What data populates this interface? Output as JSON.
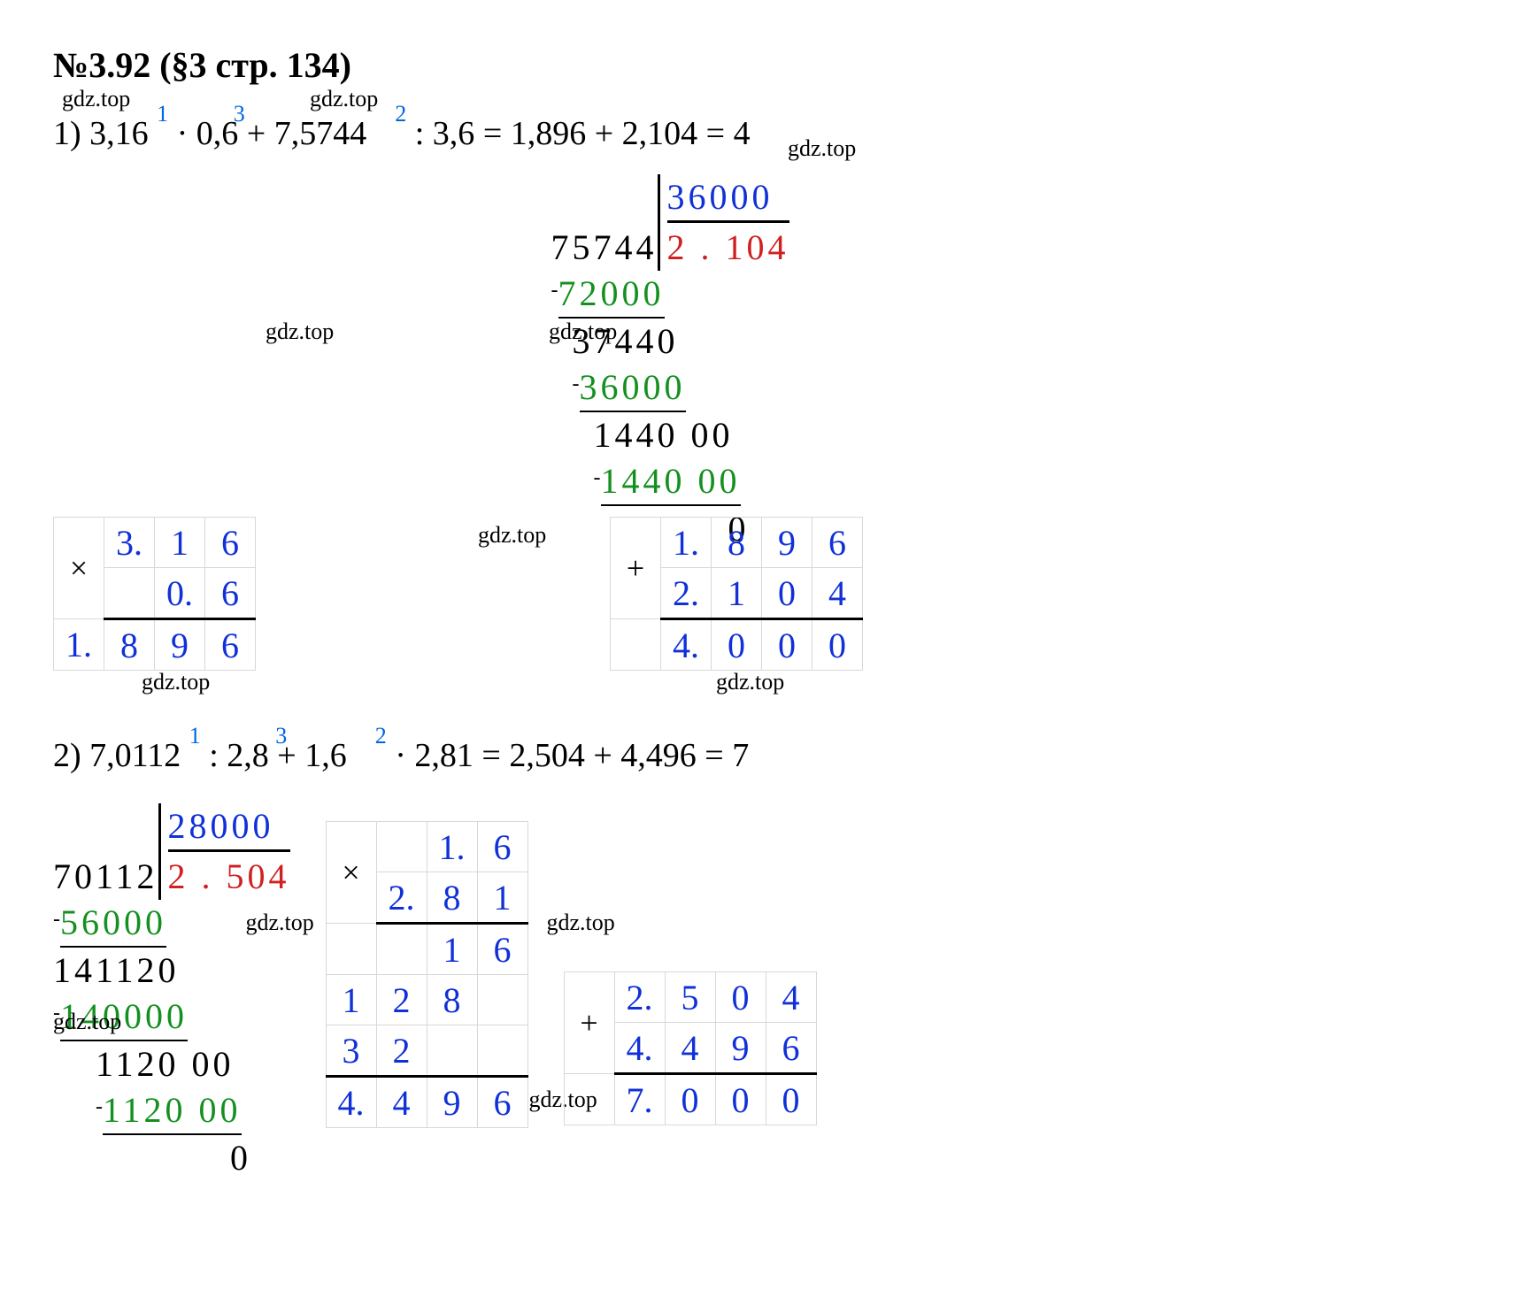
{
  "title": "№3.92 (§3 стр. 134)",
  "wm": "gdz.top",
  "eq1": {
    "prefix": "1) 3,16",
    "s1": "1",
    "m1": "· 0,6 + 7,5744",
    "s2": "3",
    "m2": ": 3,6",
    "s3": "2",
    "rest": "= 1,896 + 2,104 = 4"
  },
  "eq2": {
    "prefix": "2) 7,0112",
    "s1": "1",
    "m1": ": 2,8 + 1,6",
    "s2": "3",
    "m2": "· 2,81",
    "s3": "2",
    "rest": "= 2,504 + 4,496 = 7"
  },
  "mult1": {
    "op": "×",
    "r1": [
      "",
      "3.",
      "1",
      "6"
    ],
    "r2": [
      "",
      "",
      "0.",
      "6"
    ],
    "r3": [
      "1.",
      "8",
      "9",
      "6"
    ]
  },
  "div1": {
    "dividend": "75744",
    "divisor": "36000",
    "quotient": "2 . 104",
    "steps": [
      {
        "minus": "-",
        "v": "72000",
        "cls": "green ul",
        "ind": ""
      },
      {
        "minus": "",
        "v": "37440",
        "cls": "",
        "ind": "ind1"
      },
      {
        "minus": "-",
        "v": "36000",
        "cls": "green ul",
        "ind": "ind1"
      },
      {
        "minus": "",
        "v": "1440 00",
        "cls": "",
        "ind": "ind2"
      },
      {
        "minus": "-",
        "v": "1440 00",
        "cls": "green ul",
        "ind": "ind2"
      },
      {
        "minus": "",
        "v": "0",
        "cls": "",
        "ind": "ind5"
      }
    ]
  },
  "add1": {
    "op": "+",
    "r1": [
      "",
      "1.",
      "8",
      "9",
      "6"
    ],
    "r2": [
      "",
      "2.",
      "1",
      "0",
      "4"
    ],
    "r3": [
      "",
      "4.",
      "0",
      "0",
      "0"
    ]
  },
  "div2": {
    "dividend": "70112",
    "divisor": "28000",
    "quotient": "2 . 504",
    "steps": [
      {
        "minus": "-",
        "v": "56000",
        "cls": "green ul",
        "ind": ""
      },
      {
        "minus": "",
        "v": "141120",
        "cls": "",
        "ind": ""
      },
      {
        "minus": "-",
        "v": "140000",
        "cls": "green ul",
        "ind": ""
      },
      {
        "minus": "",
        "v": "1120 00",
        "cls": "",
        "ind": "ind2"
      },
      {
        "minus": "-",
        "v": "1120 00",
        "cls": "green ul",
        "ind": "ind2"
      },
      {
        "minus": "",
        "v": "0",
        "cls": "",
        "ind": "ind5"
      }
    ]
  },
  "mult2": {
    "op": "×",
    "r1": [
      "",
      "",
      "1.",
      "6"
    ],
    "r2": [
      "",
      "2.",
      "8",
      "1"
    ],
    "p1": [
      "",
      "",
      "1",
      "6"
    ],
    "p2": [
      "1",
      "2",
      "8",
      ""
    ],
    "p3": [
      "3",
      "2",
      "",
      ""
    ],
    "res": [
      "4.",
      "4",
      "9",
      "6"
    ]
  },
  "add2": {
    "op": "+",
    "r1": [
      "",
      "2.",
      "5",
      "0",
      "4"
    ],
    "r2": [
      "",
      "4.",
      "4",
      "9",
      "6"
    ],
    "r3": [
      "",
      "7.",
      "0",
      "0",
      "0"
    ]
  }
}
